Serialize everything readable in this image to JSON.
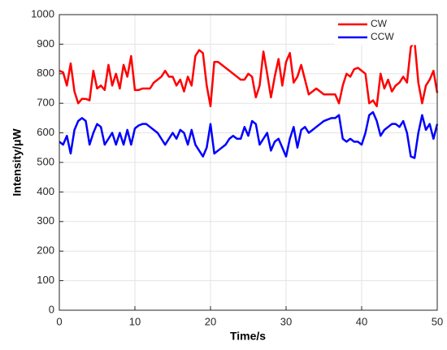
{
  "chart_data": {
    "type": "line",
    "x_label": "Time/s",
    "y_label": "Intensity/μW",
    "xlim": [
      0,
      50
    ],
    "ylim": [
      0,
      1000
    ],
    "xticks": [
      0,
      10,
      20,
      30,
      40,
      50
    ],
    "yticks": [
      0,
      100,
      200,
      300,
      400,
      500,
      600,
      700,
      800,
      900,
      1000
    ],
    "grid": true,
    "legend": "upper right",
    "x": [
      0,
      0.5,
      1,
      1.5,
      2,
      2.5,
      3,
      3.5,
      4,
      4.5,
      5,
      5.5,
      6,
      6.5,
      7,
      7.5,
      8,
      8.5,
      9,
      9.5,
      10,
      10.5,
      11,
      11.5,
      12,
      12.5,
      13,
      13.5,
      14,
      14.5,
      15,
      15.5,
      16,
      16.5,
      17,
      17.5,
      18,
      18.5,
      19,
      19.5,
      20,
      20.5,
      21,
      21.5,
      22,
      22.5,
      23,
      23.5,
      24,
      24.5,
      25,
      25.5,
      26,
      26.5,
      27,
      27.5,
      28,
      28.5,
      29,
      29.5,
      30,
      30.5,
      31,
      31.5,
      32,
      32.5,
      33,
      33.5,
      34,
      34.5,
      35,
      35.5,
      36,
      36.5,
      37,
      37.5,
      38,
      38.5,
      39,
      39.5,
      40,
      40.5,
      41,
      41.5,
      42,
      42.5,
      43,
      43.5,
      44,
      44.5,
      45,
      45.5,
      46,
      46.5,
      47,
      47.5,
      48,
      48.5,
      49,
      49.5,
      50
    ],
    "series": [
      {
        "name": "CW",
        "color": "#ff0000",
        "values": [
          810,
          805,
          760,
          835,
          740,
          700,
          715,
          715,
          710,
          810,
          750,
          760,
          745,
          830,
          760,
          800,
          750,
          830,
          790,
          860,
          745,
          745,
          750,
          750,
          750,
          770,
          780,
          790,
          810,
          790,
          790,
          760,
          780,
          740,
          790,
          760,
          860,
          880,
          870,
          760,
          690,
          840,
          840,
          830,
          820,
          810,
          800,
          790,
          780,
          780,
          800,
          790,
          720,
          760,
          875,
          800,
          720,
          790,
          850,
          760,
          840,
          870,
          770,
          790,
          830,
          780,
          730,
          740,
          750,
          740,
          730,
          730,
          730,
          730,
          700,
          760,
          800,
          790,
          815,
          820,
          810,
          800,
          700,
          710,
          690,
          800,
          750,
          780,
          740,
          760,
          770,
          790,
          770,
          890,
          910,
          770,
          700,
          760,
          780,
          810,
          735
        ]
      },
      {
        "name": "CCW",
        "color": "#0000ff",
        "values": [
          570,
          560,
          590,
          530,
          610,
          640,
          650,
          640,
          560,
          600,
          630,
          620,
          560,
          580,
          600,
          560,
          600,
          560,
          610,
          560,
          615,
          625,
          630,
          630,
          620,
          610,
          600,
          580,
          560,
          580,
          600,
          580,
          610,
          600,
          560,
          610,
          560,
          540,
          520,
          550,
          630,
          530,
          540,
          550,
          560,
          580,
          590,
          580,
          580,
          620,
          590,
          640,
          630,
          560,
          580,
          600,
          540,
          570,
          580,
          550,
          520,
          580,
          620,
          550,
          610,
          620,
          600,
          610,
          620,
          630,
          640,
          645,
          650,
          650,
          660,
          580,
          570,
          580,
          570,
          570,
          560,
          600,
          660,
          670,
          640,
          590,
          610,
          620,
          630,
          630,
          620,
          640,
          600,
          520,
          515,
          600,
          660,
          610,
          630,
          580,
          630
        ]
      }
    ]
  }
}
